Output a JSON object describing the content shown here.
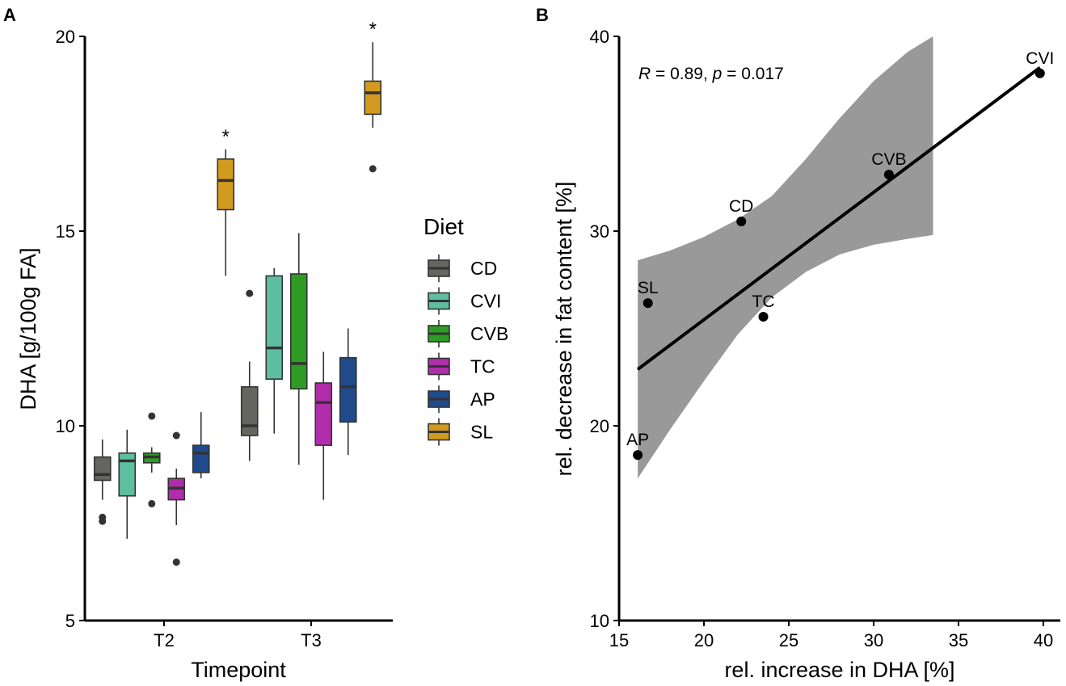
{
  "chart_data": [
    {
      "type": "box",
      "panel_label": "A",
      "xlabel": "Timepoint",
      "ylabel": "DHA [g/100g FA]",
      "ylim": [
        5,
        20
      ],
      "yticks": [
        5,
        10,
        15,
        20
      ],
      "categories": [
        "T2",
        "T3"
      ],
      "legend": {
        "title": "Diet",
        "position": "right"
      },
      "series": [
        {
          "name": "CD",
          "color": "#666660",
          "boxes": [
            {
              "timepoint": "T2",
              "min": 8.1,
              "q1": 8.6,
              "median": 8.75,
              "q3": 9.2,
              "max": 9.65,
              "outliers": [
                7.55,
                7.65
              ]
            },
            {
              "timepoint": "T3",
              "min": 9.1,
              "q1": 9.75,
              "median": 10.0,
              "q3": 11.0,
              "max": 11.65,
              "outliers": [
                13.4
              ]
            }
          ]
        },
        {
          "name": "CVI",
          "color": "#5dbf9f",
          "boxes": [
            {
              "timepoint": "T2",
              "min": 7.1,
              "q1": 8.2,
              "median": 9.1,
              "q3": 9.3,
              "max": 9.9,
              "outliers": []
            },
            {
              "timepoint": "T3",
              "min": 9.8,
              "q1": 11.2,
              "median": 12.0,
              "q3": 13.85,
              "max": 14.05,
              "outliers": []
            }
          ]
        },
        {
          "name": "CVB",
          "color": "#2e9c24",
          "boxes": [
            {
              "timepoint": "T2",
              "min": 8.8,
              "q1": 9.05,
              "median": 9.2,
              "q3": 9.3,
              "max": 9.45,
              "outliers": [
                10.25,
                8.0
              ]
            },
            {
              "timepoint": "T3",
              "min": 9.0,
              "q1": 10.95,
              "median": 11.6,
              "q3": 13.9,
              "max": 14.95,
              "outliers": []
            }
          ]
        },
        {
          "name": "TC",
          "color": "#b02eaa",
          "boxes": [
            {
              "timepoint": "T2",
              "min": 7.45,
              "q1": 8.1,
              "median": 8.4,
              "q3": 8.65,
              "max": 8.9,
              "outliers": [
                9.75,
                6.5
              ]
            },
            {
              "timepoint": "T3",
              "min": 8.1,
              "q1": 9.5,
              "median": 10.6,
              "q3": 11.1,
              "max": 11.9,
              "outliers": []
            }
          ]
        },
        {
          "name": "AP",
          "color": "#1f4a8c",
          "boxes": [
            {
              "timepoint": "T2",
              "min": 8.65,
              "q1": 8.8,
              "median": 9.3,
              "q3": 9.5,
              "max": 10.35,
              "outliers": []
            },
            {
              "timepoint": "T3",
              "min": 9.25,
              "q1": 10.1,
              "median": 11.0,
              "q3": 11.75,
              "max": 12.5,
              "outliers": []
            }
          ]
        },
        {
          "name": "SL",
          "color": "#d39a20",
          "boxes": [
            {
              "timepoint": "T2",
              "min": 13.85,
              "q1": 15.55,
              "median": 16.3,
              "q3": 16.85,
              "max": 17.1,
              "outliers": [],
              "annotation": "*"
            },
            {
              "timepoint": "T3",
              "min": 17.65,
              "q1": 18.0,
              "median": 18.55,
              "q3": 18.85,
              "max": 19.85,
              "outliers": [
                16.6
              ],
              "annotation": "*"
            }
          ]
        }
      ]
    },
    {
      "type": "scatter",
      "panel_label": "B",
      "xlabel": "rel. increase in DHA  [%]",
      "ylabel": "rel. decrease in fat content [%]",
      "xlim": [
        15,
        41
      ],
      "ylim": [
        10,
        40
      ],
      "xticks": [
        15,
        20,
        25,
        30,
        35,
        40
      ],
      "yticks": [
        10,
        20,
        30,
        40
      ],
      "annotation": {
        "r_symbol": "R",
        "r_text": " = 0.89, ",
        "p_symbol": "p",
        "p_text": " = 0.017"
      },
      "points": [
        {
          "label": "CVI",
          "x": 39.8,
          "y": 38.1
        },
        {
          "label": "CVB",
          "x": 30.9,
          "y": 32.9
        },
        {
          "label": "CD",
          "x": 22.2,
          "y": 30.5
        },
        {
          "label": "SL",
          "x": 16.7,
          "y": 26.3
        },
        {
          "label": "TC",
          "x": 23.5,
          "y": 25.6
        },
        {
          "label": "AP",
          "x": 16.1,
          "y": 18.5
        }
      ],
      "regression": {
        "x": [
          16.1,
          39.8
        ],
        "y": [
          22.9,
          38.4
        ]
      },
      "confidence_band": [
        {
          "x": 16.1,
          "lower": 17.3,
          "upper": 28.5
        },
        {
          "x": 18.0,
          "lower": 19.8,
          "upper": 29.0
        },
        {
          "x": 20.0,
          "lower": 22.3,
          "upper": 29.7
        },
        {
          "x": 22.0,
          "lower": 24.7,
          "upper": 30.6
        },
        {
          "x": 24.0,
          "lower": 26.6,
          "upper": 31.8
        },
        {
          "x": 26.0,
          "lower": 27.9,
          "upper": 33.7
        },
        {
          "x": 28.0,
          "lower": 28.8,
          "upper": 35.8
        },
        {
          "x": 30.0,
          "lower": 29.3,
          "upper": 37.7
        },
        {
          "x": 32.0,
          "lower": 29.6,
          "upper": 39.2
        },
        {
          "x": 33.5,
          "lower": 29.8,
          "upper": 40.0
        }
      ],
      "band_color": "#999999"
    }
  ]
}
